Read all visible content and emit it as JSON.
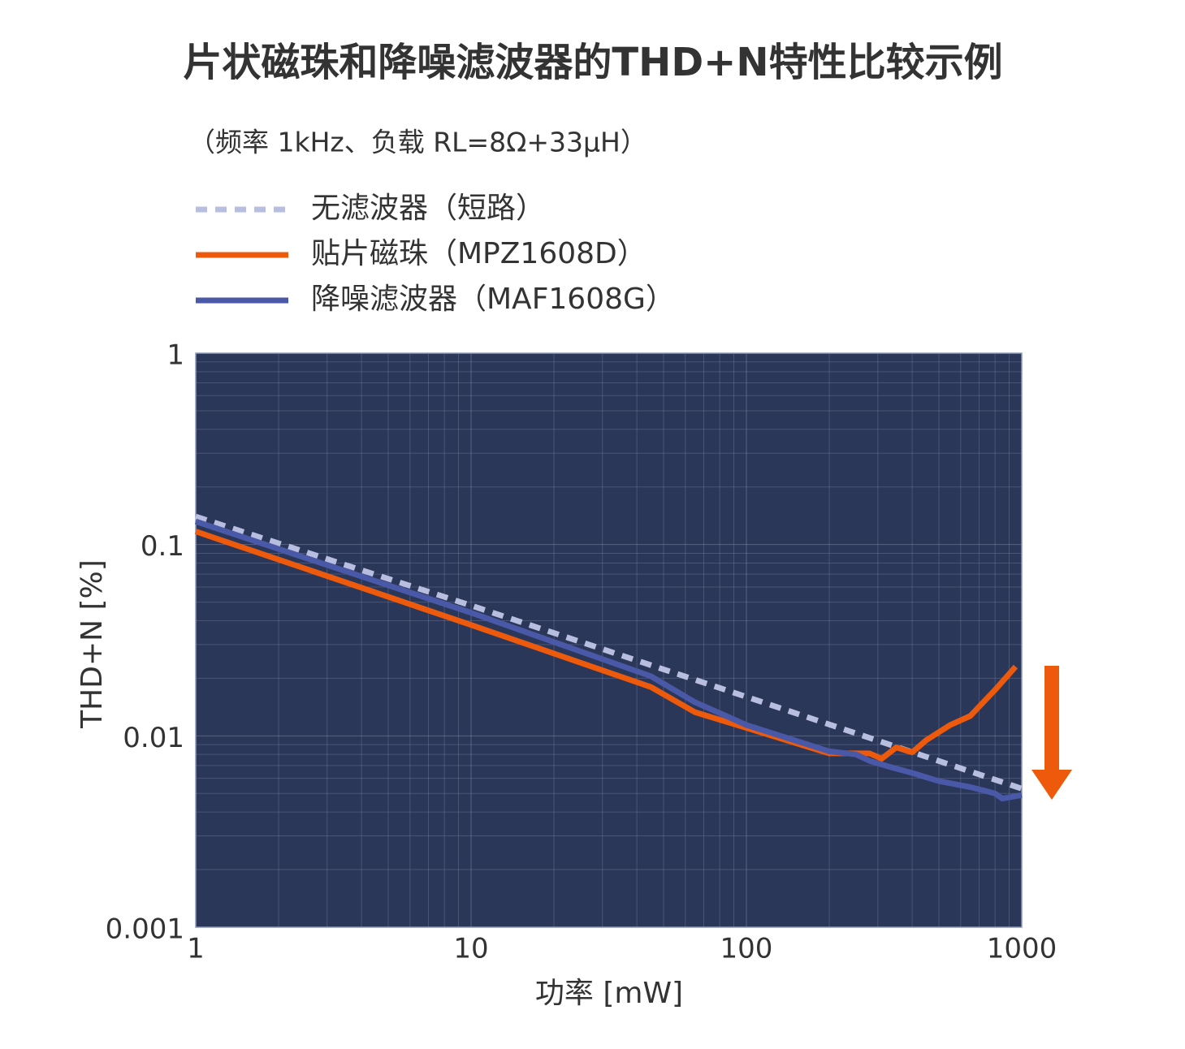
{
  "chart_data": {
    "type": "line",
    "title": "片状磁珠和降噪滤波器的THD+N特性比较示例",
    "subtitle": "（频率 1kHz、负载 RL=8Ω+33μH）",
    "x_label": "功率 [mW]",
    "y_label": "THD+N [%]",
    "xscale": "log",
    "yscale": "log",
    "xlim": [
      1,
      1000
    ],
    "ylim": [
      0.001,
      1
    ],
    "xticks": [
      1,
      10,
      100,
      1000
    ],
    "yticks": [
      0.001,
      0.01,
      0.1,
      1
    ],
    "grid": true,
    "minor_grid": true,
    "background": "#2b3758",
    "series": [
      {
        "name": "无滤波器（短路）",
        "color": "#b8bedf",
        "dashed": true,
        "x": [
          1,
          10,
          100,
          1000
        ],
        "values": [
          0.14,
          0.048,
          0.016,
          0.0053
        ]
      },
      {
        "name": "贴片磁珠（MPZ1608D）",
        "color": "#ee5a0c",
        "dashed": false,
        "x": [
          1,
          10,
          45,
          65,
          100,
          200,
          280,
          310,
          350,
          400,
          450,
          550,
          650,
          800,
          950
        ],
        "values": [
          0.117,
          0.038,
          0.018,
          0.0133,
          0.011,
          0.0081,
          0.0081,
          0.0076,
          0.0087,
          0.0082,
          0.0095,
          0.0114,
          0.0127,
          0.0174,
          0.023
        ]
      },
      {
        "name": "降噪滤波器（MAF1608G）",
        "color": "#4a58a8",
        "dashed": false,
        "x": [
          1,
          10,
          45,
          65,
          100,
          200,
          250,
          280,
          330,
          400,
          500,
          650,
          800,
          850,
          1000
        ],
        "values": [
          0.132,
          0.044,
          0.0205,
          0.015,
          0.0114,
          0.0083,
          0.008,
          0.0074,
          0.0069,
          0.0064,
          0.0058,
          0.0054,
          0.005,
          0.0047,
          0.0049
        ]
      }
    ]
  }
}
